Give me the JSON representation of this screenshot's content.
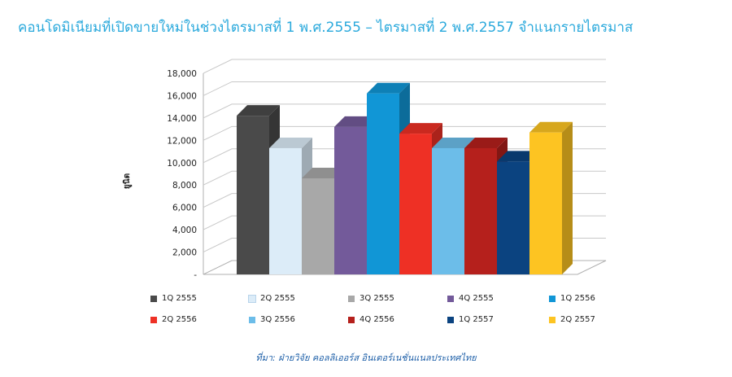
{
  "title": "คอนโดมิเนียมที่เปิดขายใหม่ในช่วงไตรมาสที่ 1 พ.ศ.2555 – ไตรมาสที่ 2 พ.ศ.2557 จำแนกรายไตรมาส",
  "source": "ที่มา: ฝ่ายวิจัย คอลลิเออร์ส อินเตอร์เนชั่นแนลประเทศไทย",
  "chart_data": {
    "type": "bar",
    "title": "คอนโดมิเนียมที่เปิดขายใหม่ในช่วงไตรมาสที่ 1 พ.ศ.2555 – ไตรมาสที่ 2 พ.ศ.2557 จำแนกรายไตรมาส",
    "ylabel": "ยูนิต",
    "xlabel": "",
    "ylim": [
      0,
      18000
    ],
    "yticks": [
      "-",
      "2,000",
      "4,000",
      "6,000",
      "8,000",
      "10,000",
      "12,000",
      "14,000",
      "16,000",
      "18,000"
    ],
    "grid": true,
    "legend_position": "bottom",
    "categories": [
      "1Q 2555",
      "2Q 2555",
      "3Q 2555",
      "4Q 2555",
      "1Q 2556",
      "2Q 2556",
      "3Q 2556",
      "4Q 2556",
      "1Q 2557",
      "2Q 2557"
    ],
    "values": [
      14200,
      11300,
      8600,
      13200,
      16200,
      12600,
      11300,
      11300,
      10100,
      12700
    ],
    "colors": [
      "#4a4a4a",
      "#dcecf8",
      "#a8a8a8",
      "#735a9a",
      "#1196d6",
      "#ee3025",
      "#6cbde9",
      "#b5201c",
      "#0b4380",
      "#fdc422"
    ]
  }
}
